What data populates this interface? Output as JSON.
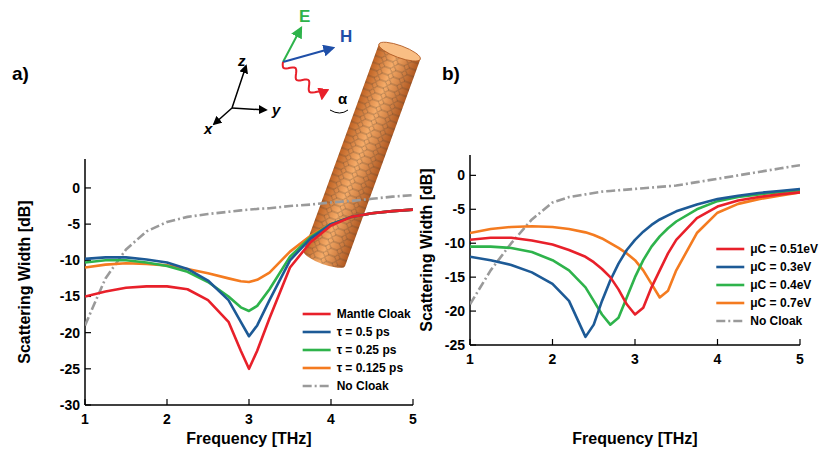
{
  "chart_data": [
    {
      "type": "line",
      "panel_label": "a)",
      "x_label": "Frequency [THz]",
      "y_label": "Scattering Width [dB]",
      "xlim": [
        1,
        5
      ],
      "xticks": [
        1,
        2,
        3,
        4,
        5
      ],
      "ylim": [
        -30,
        4
      ],
      "yticks": [
        -30,
        -25,
        -20,
        -15,
        -10,
        -5,
        0
      ],
      "grid": false,
      "legend": "lower right",
      "annotations": [
        "E",
        "H",
        "z",
        "y",
        "x",
        "α"
      ],
      "x": [
        1,
        1.25,
        1.5,
        1.75,
        2,
        2.25,
        2.5,
        2.75,
        2.9,
        3,
        3.1,
        3.25,
        3.5,
        3.75,
        4,
        4.25,
        4.5,
        4.75,
        5
      ],
      "series": [
        {
          "name": "Mantle Cloak",
          "color": "#e8202a",
          "values": [
            -15,
            -14.3,
            -13.8,
            -13.6,
            -13.6,
            -14,
            -15.5,
            -18.5,
            -22.5,
            -25,
            -22.5,
            -18,
            -11,
            -7.5,
            -5.2,
            -4,
            -3.5,
            -3.2,
            -3
          ]
        },
        {
          "name": "τ = 0.5 ps",
          "color": "#1d5a96",
          "values": [
            -9.8,
            -9.6,
            -9.6,
            -9.9,
            -10.3,
            -11.2,
            -12.8,
            -15.5,
            -18.5,
            -20.5,
            -19,
            -15.5,
            -10,
            -7,
            -5,
            -4,
            -3.5,
            -3.2,
            -3
          ]
        },
        {
          "name": "τ = 0.25 ps",
          "color": "#2eb34b",
          "values": [
            -10.3,
            -10,
            -10,
            -10.3,
            -10.8,
            -11.6,
            -13,
            -15,
            -16.5,
            -17,
            -16.3,
            -14,
            -9.5,
            -6.8,
            -5,
            -4,
            -3.5,
            -3.2,
            -3
          ]
        },
        {
          "name": "τ = 0.125 ps",
          "color": "#f47b20",
          "values": [
            -11,
            -10.6,
            -10.4,
            -10.5,
            -10.7,
            -11.2,
            -11.8,
            -12.5,
            -12.9,
            -13,
            -12.7,
            -11.7,
            -8.8,
            -6.6,
            -5,
            -4,
            -3.5,
            -3.2,
            -3
          ]
        },
        {
          "name": "No Cloak",
          "color": "#9a9a9a",
          "line_style": "dashdot",
          "values": [
            -19,
            -12.5,
            -8.5,
            -6,
            -4.7,
            -4,
            -3.6,
            -3.3,
            -3.1,
            -3,
            -2.9,
            -2.8,
            -2.5,
            -2.3,
            -2,
            -1.8,
            -1.5,
            -1.2,
            -1
          ]
        }
      ]
    },
    {
      "type": "line",
      "panel_label": "b)",
      "x_label": "Frequency [THz]",
      "y_label": "Scattering Width [dB]",
      "xlim": [
        1,
        5
      ],
      "xticks": [
        1,
        2,
        3,
        4,
        5
      ],
      "ylim": [
        -25,
        3
      ],
      "yticks": [
        -25,
        -20,
        -15,
        -10,
        -5,
        0
      ],
      "grid": false,
      "legend": "lower right",
      "x": [
        1,
        1.25,
        1.5,
        1.75,
        2,
        2.2,
        2.4,
        2.5,
        2.6,
        2.7,
        2.8,
        2.9,
        3,
        3.1,
        3.2,
        3.3,
        3.4,
        3.5,
        3.75,
        4,
        4.25,
        4.5,
        4.75,
        5
      ],
      "series": [
        {
          "name": "μC = 0.51eV",
          "color": "#e8202a",
          "values": [
            -9.5,
            -9.2,
            -9.2,
            -9.6,
            -10.2,
            -11,
            -12,
            -12.8,
            -13.8,
            -15,
            -16.8,
            -19,
            -20.5,
            -19.5,
            -16.5,
            -14,
            -11.5,
            -9.5,
            -6.3,
            -4.6,
            -3.7,
            -3.2,
            -2.8,
            -2.5
          ]
        },
        {
          "name": "μC = 0.3eV",
          "color": "#1d5a96",
          "values": [
            -12,
            -12.5,
            -13.2,
            -14.3,
            -16,
            -18.5,
            -23.8,
            -22,
            -18.5,
            -15.5,
            -13,
            -11,
            -9.5,
            -8.3,
            -7.3,
            -6.5,
            -5.9,
            -5.3,
            -4.3,
            -3.5,
            -3,
            -2.6,
            -2.3,
            -2
          ]
        },
        {
          "name": "μC = 0.4eV",
          "color": "#2eb34b",
          "values": [
            -10.5,
            -10.5,
            -10.7,
            -11.3,
            -12.5,
            -14,
            -16.5,
            -18.5,
            -20.5,
            -22,
            -21,
            -18,
            -15,
            -12.5,
            -10.5,
            -9,
            -7.8,
            -6.8,
            -5,
            -3.8,
            -3.2,
            -2.8,
            -2.5,
            -2.2
          ]
        },
        {
          "name": "μC = 0.7eV",
          "color": "#f47b20",
          "values": [
            -8.5,
            -7.9,
            -7.6,
            -7.5,
            -7.6,
            -7.9,
            -8.4,
            -8.8,
            -9.3,
            -10,
            -10.7,
            -11.5,
            -12.5,
            -14,
            -16,
            -18,
            -17,
            -14,
            -8.5,
            -5.5,
            -4.2,
            -3.5,
            -3,
            -2.5
          ]
        },
        {
          "name": "No Cloak",
          "color": "#9a9a9a",
          "line_style": "dashdot",
          "values": [
            -19,
            -14,
            -10,
            -6.5,
            -4,
            -3.2,
            -2.8,
            -2.6,
            -2.4,
            -2.3,
            -2.2,
            -2.1,
            -2,
            -1.9,
            -1.8,
            -1.7,
            -1.6,
            -1.5,
            -1,
            -0.5,
            0,
            0.5,
            1,
            1.5
          ]
        }
      ]
    }
  ]
}
